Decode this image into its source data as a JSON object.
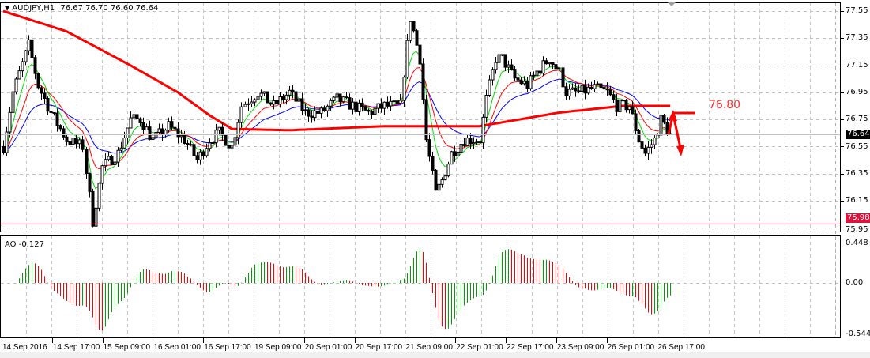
{
  "header": {
    "symbol": "AUDJPY,H1",
    "ohlc": "76.67 76.70 76.60 76.64"
  },
  "indicator": {
    "label": "AO -0.127"
  },
  "price_axis": {
    "ticks": [
      "77.55",
      "77.35",
      "77.15",
      "76.95",
      "76.75",
      "76.55",
      "76.35",
      "76.15",
      "75.95"
    ],
    "current_price": "76.64",
    "alert_price": "75.98"
  },
  "ao_axis": {
    "ticks": [
      "0.448",
      "0.00",
      "-0.544"
    ]
  },
  "time_axis": {
    "labels": [
      "14 Sep 2016",
      "14 Sep 17:00",
      "15 Sep 09:00",
      "16 Sep 01:00",
      "16 Sep 17:00",
      "19 Sep 09:00",
      "20 Sep 01:00",
      "20 Sep 17:00",
      "21 Sep 09:00",
      "22 Sep 01:00",
      "22 Sep 17:00",
      "23 Sep 09:00",
      "26 Sep 01:00",
      "26 Sep 17:00"
    ]
  },
  "annotation": {
    "text": "76.80",
    "color": "#ff3030"
  },
  "colors": {
    "bull_ao": "#00a000",
    "bear_ao": "#ff0000",
    "ma_long": "#ff0000",
    "ma_blue": "#0000ff",
    "ma_green": "#00dd00",
    "ma_red": "#ff0000",
    "alert_line": "#dc143c",
    "current_line": "#c0c0c0"
  },
  "chart_data": {
    "type": "candlestick",
    "timeframe": "H1",
    "ylim": [
      75.93,
      77.62
    ],
    "close_path": [
      [
        0,
        76.55
      ],
      [
        3,
        76.95
      ],
      [
        8,
        77.3
      ],
      [
        11,
        77.0
      ],
      [
        15,
        76.8
      ],
      [
        20,
        76.6
      ],
      [
        25,
        76.55
      ],
      [
        28,
        76.0
      ],
      [
        31,
        76.4
      ],
      [
        36,
        76.5
      ],
      [
        40,
        76.75
      ],
      [
        43,
        76.75
      ],
      [
        47,
        76.6
      ],
      [
        52,
        76.7
      ],
      [
        57,
        76.6
      ],
      [
        61,
        76.45
      ],
      [
        65,
        76.6
      ],
      [
        68,
        76.65
      ],
      [
        72,
        76.55
      ],
      [
        75,
        76.85
      ],
      [
        80,
        76.95
      ],
      [
        85,
        76.85
      ],
      [
        90,
        76.95
      ],
      [
        95,
        76.8
      ],
      [
        100,
        76.8
      ],
      [
        105,
        76.9
      ],
      [
        110,
        76.85
      ],
      [
        115,
        76.8
      ],
      [
        120,
        76.85
      ],
      [
        125,
        76.85
      ],
      [
        126,
        77.1
      ],
      [
        128,
        77.5
      ],
      [
        131,
        77.2
      ],
      [
        133,
        76.6
      ],
      [
        136,
        76.2
      ],
      [
        138,
        76.3
      ],
      [
        141,
        76.5
      ],
      [
        145,
        76.6
      ],
      [
        150,
        76.6
      ],
      [
        152,
        76.9
      ],
      [
        155,
        77.2
      ],
      [
        157,
        77.2
      ],
      [
        161,
        77.05
      ],
      [
        165,
        77.0
      ],
      [
        168,
        77.1
      ],
      [
        172,
        77.2
      ],
      [
        175,
        77.1
      ],
      [
        177,
        76.95
      ],
      [
        181,
        76.95
      ],
      [
        186,
        76.98
      ],
      [
        190,
        76.95
      ],
      [
        193,
        76.85
      ],
      [
        197,
        76.85
      ],
      [
        200,
        76.6
      ],
      [
        202,
        76.5
      ],
      [
        205,
        76.6
      ],
      [
        207,
        76.75
      ],
      [
        210,
        76.64
      ]
    ],
    "ma_long_path": [
      [
        0,
        77.55
      ],
      [
        20,
        77.4
      ],
      [
        40,
        77.15
      ],
      [
        55,
        76.95
      ],
      [
        65,
        76.78
      ],
      [
        72,
        76.68
      ],
      [
        90,
        76.67
      ],
      [
        120,
        76.7
      ],
      [
        150,
        76.7
      ],
      [
        175,
        76.8
      ],
      [
        195,
        76.85
      ],
      [
        210,
        76.85
      ]
    ],
    "ao_range": [
      -0.544,
      0.448
    ]
  }
}
